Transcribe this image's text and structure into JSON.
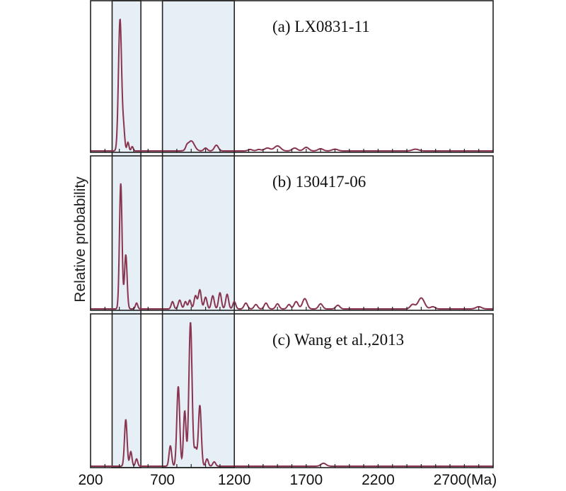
{
  "chart_data": {
    "type": "line",
    "ylabel": "Relative probability",
    "x_unit": "(Ma)",
    "xlim": [
      200,
      3000
    ],
    "x_ticks": [
      200,
      700,
      1200,
      1700,
      2200,
      2700
    ],
    "x_tick_labels": [
      "200",
      "700",
      "1200",
      "1700",
      "2200",
      "2700"
    ],
    "highlight_ranges": [
      [
        350,
        550
      ],
      [
        700,
        1200
      ]
    ],
    "colors": {
      "curve": "#8a3550",
      "band": "#e6eef6",
      "frame": "#222222"
    },
    "panels": [
      {
        "label": "(a) LX0831-11",
        "ylim": [
          0,
          1.0
        ],
        "peaks": [
          {
            "x": 405,
            "h": 0.92,
            "w": 11
          },
          {
            "x": 430,
            "h": 0.14,
            "w": 8
          },
          {
            "x": 460,
            "h": 0.06,
            "w": 7
          },
          {
            "x": 490,
            "h": 0.03,
            "w": 7
          },
          {
            "x": 900,
            "h": 0.07,
            "w": 22
          },
          {
            "x": 870,
            "h": 0.02,
            "w": 9
          },
          {
            "x": 1000,
            "h": 0.02,
            "w": 12
          },
          {
            "x": 1075,
            "h": 0.04,
            "w": 14
          },
          {
            "x": 1310,
            "h": 0.01,
            "w": 15
          },
          {
            "x": 1370,
            "h": 0.01,
            "w": 15
          },
          {
            "x": 1430,
            "h": 0.02,
            "w": 20
          },
          {
            "x": 1500,
            "h": 0.035,
            "w": 22
          },
          {
            "x": 1620,
            "h": 0.02,
            "w": 18
          },
          {
            "x": 1700,
            "h": 0.025,
            "w": 18
          },
          {
            "x": 1800,
            "h": 0.015,
            "w": 18
          },
          {
            "x": 1900,
            "h": 0.012,
            "w": 20
          },
          {
            "x": 2460,
            "h": 0.012,
            "w": 22
          }
        ]
      },
      {
        "label": "(b) 130417-06",
        "ylim": [
          0,
          1.0
        ],
        "peaks": [
          {
            "x": 410,
            "h": 0.86,
            "w": 9
          },
          {
            "x": 445,
            "h": 0.37,
            "w": 9
          },
          {
            "x": 520,
            "h": 0.04,
            "w": 8
          },
          {
            "x": 770,
            "h": 0.05,
            "w": 9
          },
          {
            "x": 820,
            "h": 0.06,
            "w": 10
          },
          {
            "x": 860,
            "h": 0.05,
            "w": 9
          },
          {
            "x": 890,
            "h": 0.06,
            "w": 9
          },
          {
            "x": 930,
            "h": 0.09,
            "w": 10
          },
          {
            "x": 960,
            "h": 0.13,
            "w": 10
          },
          {
            "x": 1000,
            "h": 0.08,
            "w": 10
          },
          {
            "x": 1050,
            "h": 0.09,
            "w": 10
          },
          {
            "x": 1100,
            "h": 0.11,
            "w": 10
          },
          {
            "x": 1150,
            "h": 0.1,
            "w": 10
          },
          {
            "x": 1200,
            "h": 0.05,
            "w": 10
          },
          {
            "x": 1280,
            "h": 0.04,
            "w": 12
          },
          {
            "x": 1350,
            "h": 0.03,
            "w": 12
          },
          {
            "x": 1420,
            "h": 0.04,
            "w": 12
          },
          {
            "x": 1500,
            "h": 0.035,
            "w": 12
          },
          {
            "x": 1580,
            "h": 0.03,
            "w": 12
          },
          {
            "x": 1630,
            "h": 0.05,
            "w": 14
          },
          {
            "x": 1690,
            "h": 0.07,
            "w": 16
          },
          {
            "x": 1800,
            "h": 0.035,
            "w": 14
          },
          {
            "x": 1920,
            "h": 0.025,
            "w": 14
          },
          {
            "x": 2440,
            "h": 0.03,
            "w": 16
          },
          {
            "x": 2500,
            "h": 0.075,
            "w": 22
          },
          {
            "x": 2580,
            "h": 0.015,
            "w": 16
          },
          {
            "x": 2900,
            "h": 0.015,
            "w": 20
          }
        ]
      },
      {
        "label": "(c) Wang et al.,2013",
        "ylim": [
          0,
          1.0
        ],
        "peaks": [
          {
            "x": 445,
            "h": 0.32,
            "w": 9
          },
          {
            "x": 480,
            "h": 0.1,
            "w": 8
          },
          {
            "x": 520,
            "h": 0.05,
            "w": 8
          },
          {
            "x": 755,
            "h": 0.14,
            "w": 9
          },
          {
            "x": 810,
            "h": 0.55,
            "w": 10
          },
          {
            "x": 855,
            "h": 0.38,
            "w": 9
          },
          {
            "x": 895,
            "h": 0.99,
            "w": 11
          },
          {
            "x": 930,
            "h": 0.12,
            "w": 9
          },
          {
            "x": 960,
            "h": 0.42,
            "w": 10
          },
          {
            "x": 1010,
            "h": 0.05,
            "w": 9
          },
          {
            "x": 1060,
            "h": 0.03,
            "w": 10
          },
          {
            "x": 1820,
            "h": 0.02,
            "w": 18
          }
        ]
      }
    ]
  }
}
